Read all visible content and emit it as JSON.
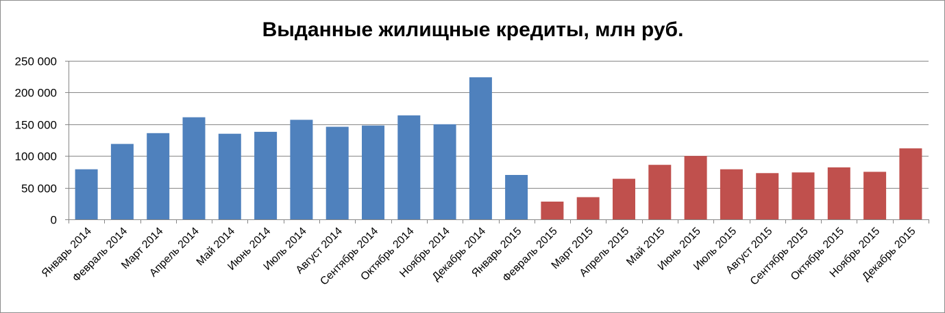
{
  "chart_data": {
    "type": "bar",
    "title": "Выданные жилищные кредиты, млн руб.",
    "xlabel": "",
    "ylabel": "",
    "ylim": [
      0,
      250000
    ],
    "yticks": [
      0,
      50000,
      100000,
      150000,
      200000,
      250000
    ],
    "ytick_labels": [
      "0",
      "50 000",
      "100 000",
      "150 000",
      "200 000",
      "250 000"
    ],
    "grid": true,
    "legend": "none",
    "categories": [
      "Январь 2014",
      "Февраль 2014",
      "Март 2014",
      "Апрель 2014",
      "Май 2014",
      "Июнь 2014",
      "Июль 2014",
      "Август 2014",
      "Сентябрь 2014",
      "Октябрь 2014",
      "Ноябрь 2014",
      "Декабрь 2014",
      "Январь 2015",
      "Февраль 2015",
      "Март 2015",
      "Апрель 2015",
      "Май 2015",
      "Июнь 2015",
      "Июль 2015",
      "Август 2015",
      "Сентябрь 2015",
      "Октябрь 2015",
      "Ноябрь 2015",
      "Декабрь 2015"
    ],
    "values": [
      79000,
      119000,
      136000,
      161000,
      135000,
      138000,
      157000,
      146000,
      148000,
      164000,
      150000,
      224000,
      70000,
      28000,
      35000,
      64000,
      86000,
      100000,
      79000,
      73000,
      74000,
      82000,
      75000,
      112000
    ],
    "bar_colors": [
      "#4f81bd",
      "#4f81bd",
      "#4f81bd",
      "#4f81bd",
      "#4f81bd",
      "#4f81bd",
      "#4f81bd",
      "#4f81bd",
      "#4f81bd",
      "#4f81bd",
      "#4f81bd",
      "#4f81bd",
      "#4f81bd",
      "#c0504d",
      "#c0504d",
      "#c0504d",
      "#c0504d",
      "#c0504d",
      "#c0504d",
      "#c0504d",
      "#c0504d",
      "#c0504d",
      "#c0504d",
      "#c0504d"
    ],
    "gridline_color": "#868686",
    "axis_color": "#868686"
  }
}
